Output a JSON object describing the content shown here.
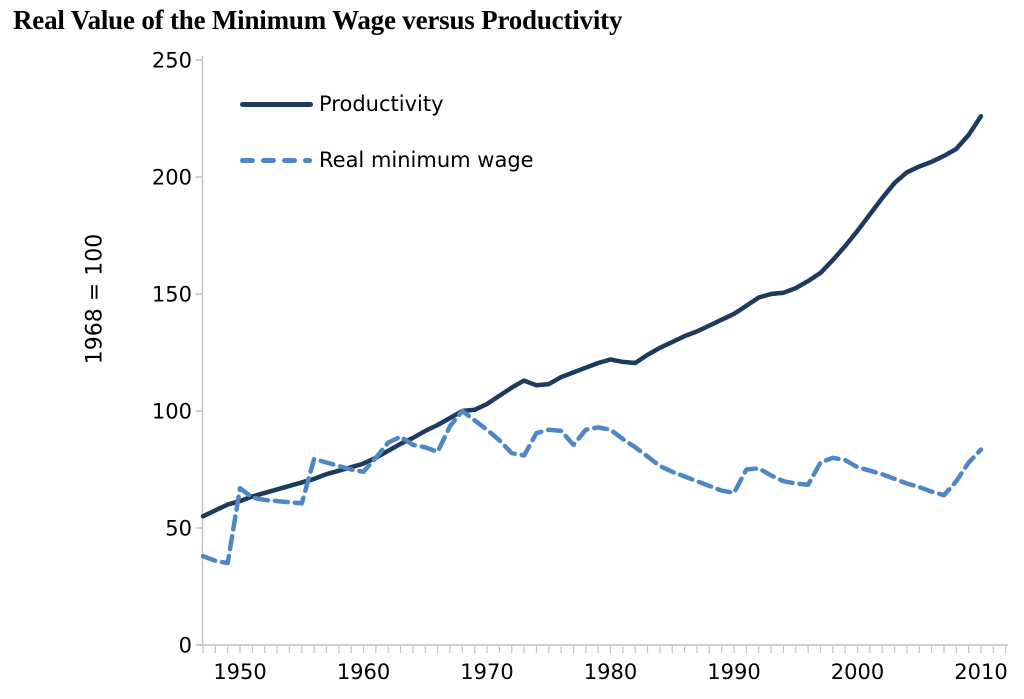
{
  "chart": {
    "title": "Real Value of the Minimum Wage versus Productivity",
    "y_axis_label": "1968 = 100",
    "legend": [
      {
        "label": "Productivity"
      },
      {
        "label": "Real minimum wage"
      }
    ],
    "colors": {
      "productivity": "#1d3a5f",
      "min_wage": "#4f87c6",
      "axis": "#c3c3c3",
      "text": "#000000",
      "background": "#ffffff"
    }
  },
  "chart_data": {
    "type": "line",
    "title": "Real Value of the Minimum Wage versus Productivity",
    "xlabel": "",
    "ylabel": "1968 = 100",
    "ylim": [
      0,
      250
    ],
    "yticks": [
      0,
      50,
      100,
      150,
      200,
      250
    ],
    "xticks": [
      1950,
      1960,
      1970,
      1980,
      1990,
      2000,
      2010
    ],
    "x_range": [
      1947,
      2010
    ],
    "minor_x_ticks_every_year": true,
    "grid": false,
    "legend_position": "inside-top-left",
    "x": [
      1947,
      1948,
      1949,
      1950,
      1951,
      1952,
      1953,
      1954,
      1955,
      1956,
      1957,
      1958,
      1959,
      1960,
      1961,
      1962,
      1963,
      1964,
      1965,
      1966,
      1967,
      1968,
      1969,
      1970,
      1971,
      1972,
      1973,
      1974,
      1975,
      1976,
      1977,
      1978,
      1979,
      1980,
      1981,
      1982,
      1983,
      1984,
      1985,
      1986,
      1987,
      1988,
      1989,
      1990,
      1991,
      1992,
      1993,
      1994,
      1995,
      1996,
      1997,
      1998,
      1999,
      2000,
      2001,
      2002,
      2003,
      2004,
      2005,
      2006,
      2007,
      2008,
      2009,
      2010
    ],
    "series": [
      {
        "name": "Productivity",
        "style": "solid",
        "color": "#1d3a5f",
        "values": [
          55,
          57.5,
          60,
          61.5,
          63.5,
          65,
          66.5,
          68,
          69.5,
          71,
          73,
          74.5,
          76,
          77.5,
          80,
          83,
          86,
          88.5,
          91.5,
          94,
          97,
          100,
          100.5,
          103,
          106.5,
          110,
          113,
          111,
          111.5,
          114.5,
          116.5,
          118.5,
          120.5,
          122,
          121,
          120.5,
          124,
          127,
          129.5,
          132,
          134,
          136.5,
          139,
          141.5,
          145,
          148.5,
          150,
          150.5,
          152.5,
          155.5,
          159,
          164.5,
          170.5,
          177,
          184,
          191,
          197.5,
          202,
          204.5,
          206.5,
          209,
          212,
          218,
          226
        ]
      },
      {
        "name": "Real minimum wage",
        "style": "dashed",
        "color": "#4f87c6",
        "values": [
          38,
          36,
          35,
          67,
          63,
          62,
          61.5,
          61,
          60.5,
          79.5,
          78,
          76.5,
          75,
          74,
          80,
          86.5,
          89,
          85.5,
          84.5,
          82.5,
          93.5,
          100,
          96,
          92,
          87.5,
          82,
          81,
          90.5,
          92,
          91.5,
          85.5,
          92,
          93,
          92,
          88,
          84.5,
          80.5,
          76.5,
          74,
          72,
          70,
          68,
          66,
          65,
          75,
          75.5,
          72.5,
          70,
          69,
          68.5,
          78,
          80,
          79,
          76,
          74.5,
          73,
          71,
          69,
          67.5,
          65.5,
          64,
          70,
          78,
          83.5
        ]
      }
    ]
  }
}
